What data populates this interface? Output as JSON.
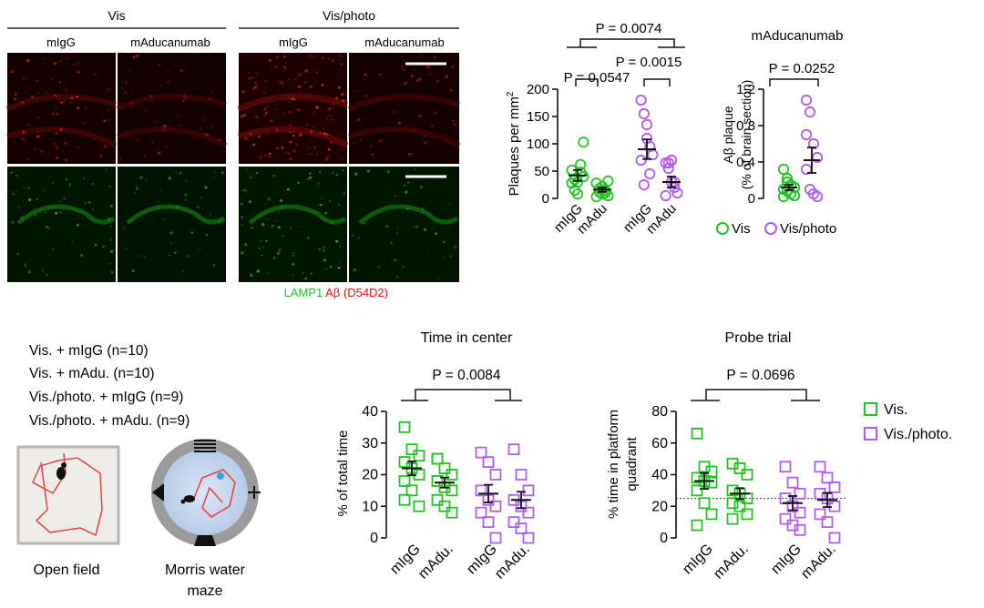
{
  "colors": {
    "green": "#22c322",
    "purple": "#b05cf0",
    "red": "#e01010",
    "micro_green": "#0a6d0a",
    "micro_red": "#7a0505"
  },
  "micrograph_panel": {
    "group_vis": "Vis",
    "group_visphoto": "Vis/photo",
    "col_migg": "mIgG",
    "col_madu": "mAducanumab",
    "legend_lamp1": "LAMP1",
    "legend_abeta": "Aβ (D54D2)"
  },
  "plaques_stats": {
    "p_top": "P = 0.0074",
    "p_mid": "P = 0.0015",
    "p_left": "P = 0.0547",
    "p_right_title": "P = 0.0252",
    "right_title": "mAducanumab"
  },
  "legend_top": {
    "vis": "Vis",
    "visphoto": "Vis/photo"
  },
  "cohorts": {
    "lines": [
      "Vis. + mIgG (n=10)",
      "Vis. + mAdu. (n=10)",
      "Vis./photo. + mIgG (n=9)",
      "Vis./photo. + mAdu. (n=9)"
    ],
    "open_field": "Open field",
    "mwm_line1": "Morris water",
    "mwm_line2": "maze"
  },
  "legend_bottom": {
    "vis": "Vis.",
    "visphoto": "Vis./photo."
  },
  "chart_data": [
    {
      "type": "scatter",
      "title": "",
      "ylabel": "Plaques per mm2",
      "categories": [
        "mIgG",
        "mAdu",
        "mIgG",
        "mAdu"
      ],
      "ylim": [
        0,
        200
      ],
      "yticks": [
        "0",
        "50",
        "100",
        "150",
        "200"
      ],
      "series": [
        {
          "name": "Vis",
          "x": [
            "mIgG",
            "mAdu"
          ],
          "points": [
            [
              52,
              35,
              30,
              48,
              40,
              28,
              15,
              8,
              62,
              103
            ],
            [
              28,
              18,
              22,
              10,
              5,
              3,
              12,
              8,
              15,
              32
            ]
          ],
          "means": [
            42,
            16
          ],
          "sem": [
            10,
            4
          ]
        },
        {
          "name": "Vis/photo",
          "x": [
            "mIgG",
            "mAdu"
          ],
          "points": [
            [
              180,
              155,
              135,
              95,
              80,
              70,
              25,
              110,
              45
            ],
            [
              65,
              55,
              30,
              20,
              10,
              5,
              65,
              70,
              30
            ]
          ],
          "means": [
            90,
            30
          ],
          "sem": [
            18,
            10
          ]
        }
      ],
      "annotations": [
        "P = 0.0074",
        "P = 0.0015",
        "P = 0.0547"
      ]
    },
    {
      "type": "scatter",
      "title": "mAducanumab",
      "ylabel": "Aβ plaque (% of brain section)",
      "categories": [
        "Vis",
        "Vis/photo"
      ],
      "ylim": [
        0,
        1.2
      ],
      "yticks": [
        "0",
        "0.4",
        "0.8",
        "1.2"
      ],
      "series": [
        {
          "name": "Vis",
          "points": [
            0.32,
            0.22,
            0.15,
            0.12,
            0.1,
            0.08,
            0.05,
            0.03,
            0.02,
            0.18
          ],
          "mean": 0.12,
          "sem": 0.03
        },
        {
          "name": "Vis/photo",
          "points": [
            1.08,
            0.95,
            0.6,
            0.45,
            0.32,
            0.1,
            0.05,
            0.02,
            0.7
          ],
          "mean": 0.42,
          "sem": 0.14
        }
      ],
      "annotations": [
        "P = 0.0252"
      ]
    },
    {
      "type": "scatter",
      "title": "Time in center",
      "ylabel": "% of total time",
      "categories": [
        "mIgG",
        "mAdu.",
        "mIgG",
        "mAdu."
      ],
      "ylim": [
        0,
        40
      ],
      "yticks": [
        "0",
        "10",
        "20",
        "30",
        "40"
      ],
      "series": [
        {
          "name": "Vis.",
          "groups": [
            [
              35,
              28,
              26,
              24,
              22,
              20,
              18,
              15,
              10,
              12
            ],
            [
              25,
              22,
              20,
              18,
              16,
              15,
              12,
              10,
              8,
              25
            ]
          ],
          "means": [
            22,
            17.5
          ],
          "sem": [
            2.2,
            1.6
          ]
        },
        {
          "name": "Vis./photo.",
          "groups": [
            [
              27,
              24,
              20,
              15,
              12,
              10,
              8,
              5,
              0
            ],
            [
              28,
              20,
              15,
              12,
              10,
              8,
              5,
              3,
              0
            ]
          ],
          "means": [
            14,
            12
          ],
          "sem": [
            2.8,
            2.6
          ]
        }
      ],
      "annotations": [
        "P = 0.0084"
      ]
    },
    {
      "type": "scatter",
      "title": "Probe trial",
      "ylabel": "% time in platform quadrant",
      "categories": [
        "mIgG",
        "mAdu.",
        "mIgG",
        "mAdu."
      ],
      "ylim": [
        0,
        80
      ],
      "yticks": [
        "0",
        "20",
        "40",
        "60",
        "80"
      ],
      "reference_line": 25,
      "series": [
        {
          "name": "Vis.",
          "groups": [
            [
              66,
              45,
              42,
              38,
              36,
              35,
              30,
              22,
              15,
              8
            ],
            [
              47,
              44,
              40,
              30,
              28,
              25,
              22,
              20,
              15,
              12
            ]
          ],
          "means": [
            36,
            28
          ],
          "sem": [
            5,
            3.5
          ]
        },
        {
          "name": "Vis./photo.",
          "groups": [
            [
              45,
              35,
              28,
              25,
              20,
              16,
              12,
              8,
              5
            ],
            [
              45,
              38,
              32,
              28,
              25,
              20,
              15,
              10,
              0
            ]
          ],
          "means": [
            22,
            24
          ],
          "sem": [
            4.5,
            4.5
          ]
        }
      ],
      "annotations": [
        "P = 0.0696"
      ]
    }
  ]
}
